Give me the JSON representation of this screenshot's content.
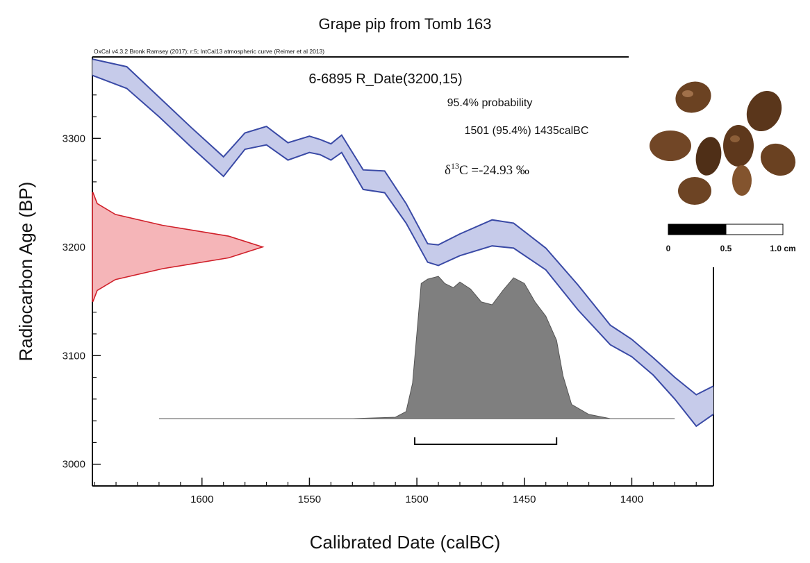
{
  "chart_data": {
    "type": "calibration",
    "title": "Grape pip from Tomb 163",
    "subtitle": "OxCal v4.3.2 Bronk Ramsey (2017); r:5; IntCal13 atmospheric curve (Reimer et al 2013)",
    "xlabel": "Calibrated Date (calBC)",
    "ylabel": "Radiocarbon Age (BP)",
    "xlim": [
      1651,
      1362
    ],
    "ylim": [
      2980,
      3375
    ],
    "xticks": [
      1600,
      1550,
      1500,
      1450,
      1400
    ],
    "yticks": [
      3000,
      3100,
      3200,
      3300
    ],
    "xminorticks": [
      1650,
      1640,
      1630,
      1620,
      1610,
      1590,
      1580,
      1570,
      1560,
      1540,
      1530,
      1520,
      1510,
      1490,
      1480,
      1470,
      1460,
      1440,
      1430,
      1420,
      1410,
      1390,
      1380,
      1370
    ],
    "yminorticks": [
      2980,
      3020,
      3040,
      3060,
      3080,
      3120,
      3140,
      3160,
      3180,
      3220,
      3240,
      3260,
      3280,
      3320,
      3340,
      3360
    ],
    "curve": {
      "color": "#3a4aa6",
      "fill": "#c6cbea",
      "x": [
        1651,
        1635,
        1620,
        1605,
        1590,
        1580,
        1570,
        1560,
        1550,
        1545,
        1540,
        1535,
        1525,
        1515,
        1505,
        1495,
        1490,
        1480,
        1465,
        1455,
        1440,
        1425,
        1410,
        1400,
        1390,
        1380,
        1370,
        1362
      ],
      "upper": [
        3373,
        3366,
        3338,
        3310,
        3283,
        3305,
        3311,
        3296,
        3302,
        3299,
        3295,
        3303,
        3271,
        3270,
        3240,
        3203,
        3202,
        3212,
        3225,
        3222,
        3199,
        3165,
        3128,
        3115,
        3098,
        3080,
        3064,
        3072
      ],
      "lower": [
        3358,
        3346,
        3320,
        3292,
        3265,
        3290,
        3294,
        3280,
        3287,
        3285,
        3280,
        3287,
        3253,
        3250,
        3222,
        3186,
        3183,
        3192,
        3201,
        3199,
        3179,
        3142,
        3110,
        3099,
        3082,
        3060,
        3035,
        3046
      ]
    },
    "measurement": {
      "name": "6-6895 R_Date(3200,15)",
      "color": "#d0202a",
      "fill": "#f5b5b8",
      "y": [
        3250,
        3240,
        3230,
        3220,
        3210,
        3200,
        3190,
        3180,
        3170,
        3160,
        3150
      ],
      "density": [
        0.004,
        0.028,
        0.135,
        0.411,
        0.801,
        1,
        0.801,
        0.411,
        0.135,
        0.028,
        0.004
      ]
    },
    "calibrated": {
      "color": "#7f7f7f",
      "x": [
        1620,
        1530,
        1510,
        1505,
        1502,
        1498,
        1495,
        1490,
        1487,
        1483,
        1480,
        1475,
        1470,
        1465,
        1460,
        1455,
        1450,
        1445,
        1440,
        1435,
        1432,
        1428,
        1420,
        1410,
        1380
      ],
      "density": [
        0,
        0,
        0.01,
        0.05,
        0.25,
        0.95,
        0.98,
        1.0,
        0.95,
        0.92,
        0.96,
        0.91,
        0.82,
        0.8,
        0.9,
        0.99,
        0.95,
        0.82,
        0.72,
        0.55,
        0.3,
        0.1,
        0.03,
        0,
        0
      ]
    },
    "range": {
      "label": "95.4% probability",
      "text": "1501 (95.4%) 1435calBC",
      "values": [
        1501,
        1435
      ]
    },
    "isotope": {
      "symbol": "δ",
      "superscript": "13",
      "text": "C =-24.93 ‰"
    },
    "scale_bar": {
      "labels": [
        "0",
        "0.5",
        "1.0 cm"
      ]
    }
  }
}
